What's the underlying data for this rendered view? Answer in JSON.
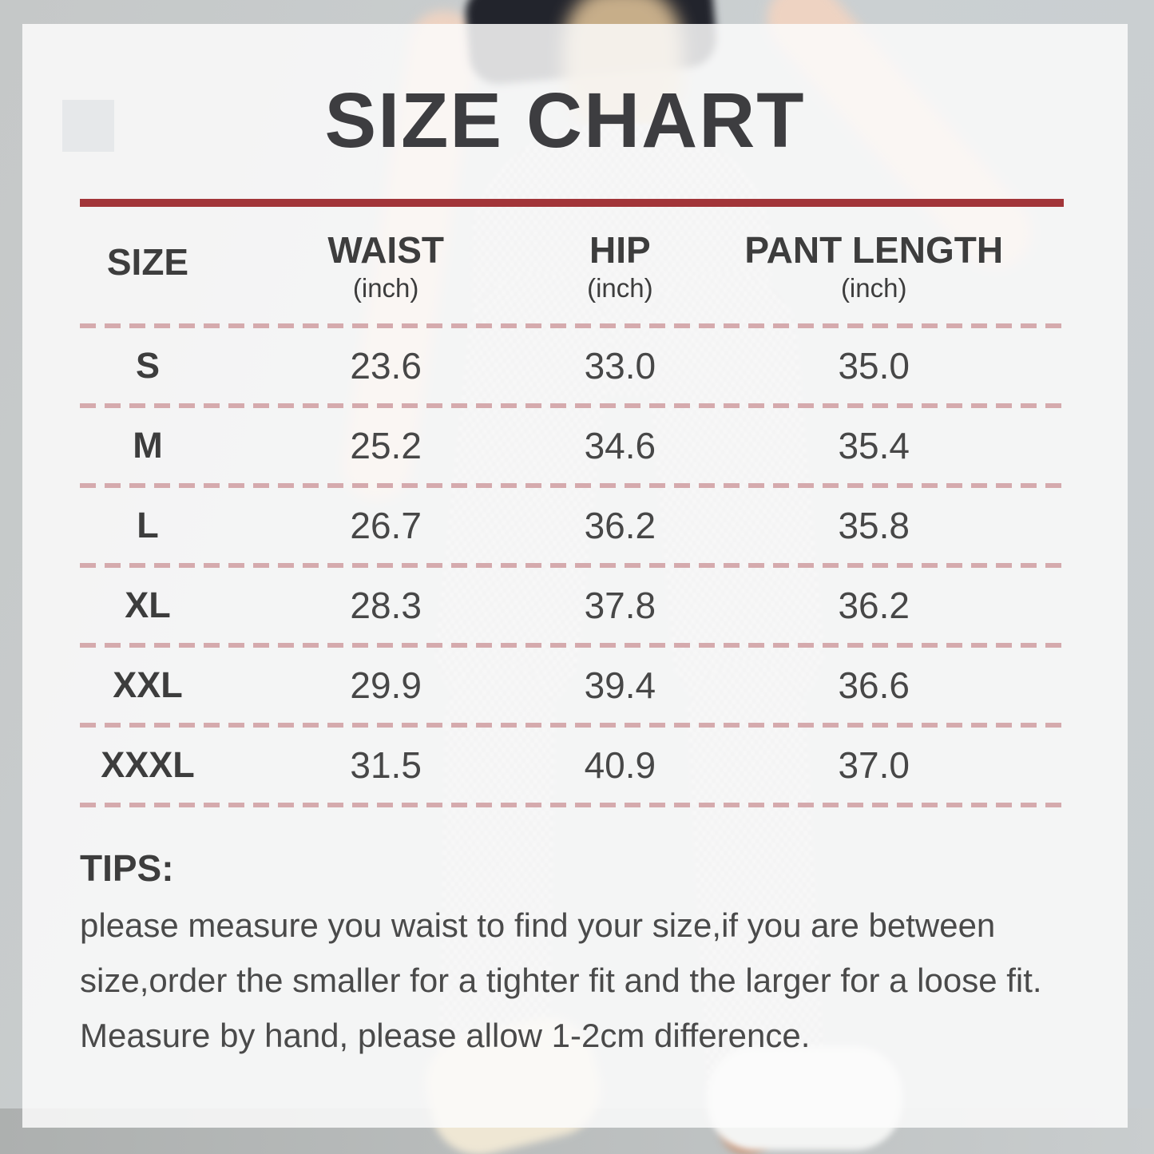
{
  "title": "SIZE CHART",
  "table": {
    "headers": [
      {
        "label": "SIZE",
        "unit": ""
      },
      {
        "label": "WAIST",
        "unit": "(inch)"
      },
      {
        "label": "HIP",
        "unit": "(inch)"
      },
      {
        "label": "PANT LENGTH",
        "unit": "(inch)"
      }
    ],
    "rows": [
      {
        "size": "S",
        "waist": "23.6",
        "hip": "33.0",
        "pant_length": "35.0"
      },
      {
        "size": "M",
        "waist": "25.2",
        "hip": "34.6",
        "pant_length": "35.4"
      },
      {
        "size": "L",
        "waist": "26.7",
        "hip": "36.2",
        "pant_length": "35.8"
      },
      {
        "size": "XL",
        "waist": "28.3",
        "hip": "37.8",
        "pant_length": "36.2"
      },
      {
        "size": "XXL",
        "waist": "29.9",
        "hip": "39.4",
        "pant_length": "36.6"
      },
      {
        "size": "XXXL",
        "waist": "31.5",
        "hip": "40.9",
        "pant_length": "37.0"
      }
    ]
  },
  "tips": {
    "heading": "TIPS:",
    "lines": [
      "please measure you waist to find your size,if you are between",
      "size,order the smaller for a tighter fit and the larger for a loose fit.",
      "Measure by hand, please allow 1-2cm difference."
    ]
  },
  "colors": {
    "accent_rule": "#a23539",
    "row_divider": "#d5aaad",
    "heading_text": "#3d3d40",
    "body_text": "#4a4a4a"
  }
}
